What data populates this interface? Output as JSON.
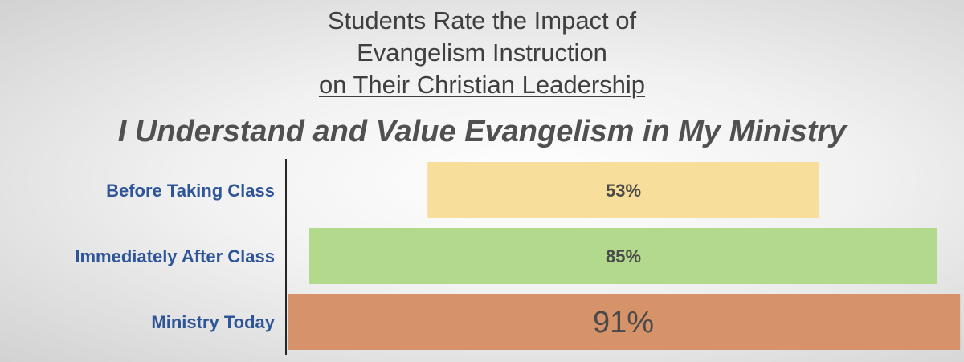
{
  "title": {
    "line1": "Students Rate the Impact of",
    "line2": "Evangelism Instruction",
    "line3": "on Their Christian Leadership"
  },
  "subtitle": "I Understand and Value Evangelism in My Ministry",
  "chart_data": {
    "type": "bar",
    "orientation": "horizontal",
    "layout": "centered-funnel",
    "categories": [
      "Before Taking Class",
      "Immediately After Class",
      "Ministry Today"
    ],
    "values": [
      53,
      85,
      91
    ],
    "value_labels": [
      "53%",
      "85%",
      "91%"
    ],
    "unit": "%",
    "title": "I Understand and Value Evangelism in My Ministry",
    "grid": false,
    "legend": "none",
    "colors": [
      "#f7df9b",
      "#b3d98c",
      "#d6936a"
    ]
  }
}
